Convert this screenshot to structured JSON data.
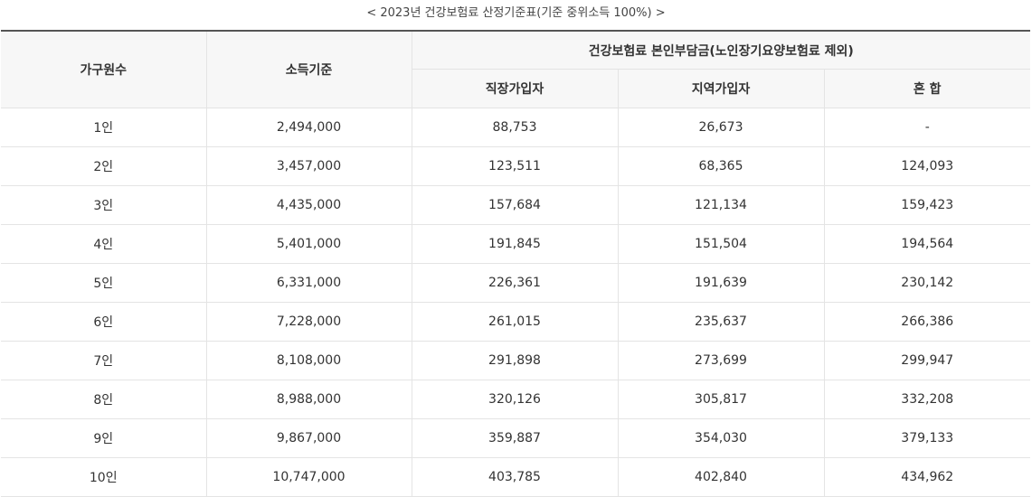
{
  "caption": "< 2023년 건강보험료 산정기준표(기준 중위소득 100%) >",
  "headers": {
    "household": "가구원수",
    "income": "소득기준",
    "group": "건강보험료 본인부담금(노인장기요양보험료 제외)",
    "employee": "직장가입자",
    "regional": "지역가입자",
    "mixed": "혼 합"
  },
  "rows": [
    {
      "household": "1인",
      "income": "2,494,000",
      "employee": "88,753",
      "regional": "26,673",
      "mixed": "-"
    },
    {
      "household": "2인",
      "income": "3,457,000",
      "employee": "123,511",
      "regional": "68,365",
      "mixed": "124,093"
    },
    {
      "household": "3인",
      "income": "4,435,000",
      "employee": "157,684",
      "regional": "121,134",
      "mixed": "159,423"
    },
    {
      "household": "4인",
      "income": "5,401,000",
      "employee": "191,845",
      "regional": "151,504",
      "mixed": "194,564"
    },
    {
      "household": "5인",
      "income": "6,331,000",
      "employee": "226,361",
      "regional": "191,639",
      "mixed": "230,142"
    },
    {
      "household": "6인",
      "income": "7,228,000",
      "employee": "261,015",
      "regional": "235,637",
      "mixed": "266,386"
    },
    {
      "household": "7인",
      "income": "8,108,000",
      "employee": "291,898",
      "regional": "273,699",
      "mixed": "299,947"
    },
    {
      "household": "8인",
      "income": "8,988,000",
      "employee": "320,126",
      "regional": "305,817",
      "mixed": "332,208"
    },
    {
      "household": "9인",
      "income": "9,867,000",
      "employee": "359,887",
      "regional": "354,030",
      "mixed": "379,133"
    },
    {
      "household": "10인",
      "income": "10,747,000",
      "employee": "403,785",
      "regional": "402,840",
      "mixed": "434,962"
    }
  ]
}
